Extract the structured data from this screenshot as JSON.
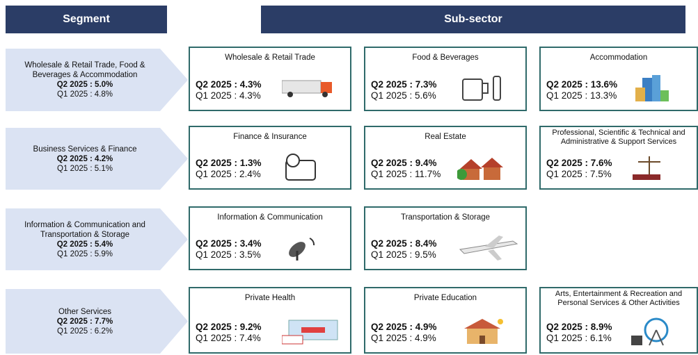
{
  "header": {
    "segment": "Segment",
    "subsector": "Sub-sector"
  },
  "segments": [
    {
      "name": "Wholesale & Retail Trade, Food & Beverages & Accommodation",
      "q2": "Q2 2025 : 5.0%",
      "q1": "Q1 2025 : 4.8%",
      "subsectors": [
        {
          "name": "Wholesale & Retail Trade",
          "q2": "Q2 2025 : 4.3%",
          "q1": "Q1 2025 : 4.3%"
        },
        {
          "name": "Food & Beverages",
          "q2": "Q2 2025 : 7.3%",
          "q1": "Q1 2025 : 5.6%"
        },
        {
          "name": "Accommodation",
          "q2": "Q2 2025 : 13.6%",
          "q1": "Q1 2025 : 13.3%"
        }
      ]
    },
    {
      "name": "Business Services & Finance",
      "q2": "Q2 2025 : 4.2%",
      "q1": "Q1 2025 : 5.1%",
      "subsectors": [
        {
          "name": "Finance & Insurance",
          "q2": "Q2 2025 : 1.3%",
          "q1": "Q1 2025 : 2.4%"
        },
        {
          "name": "Real Estate",
          "q2": "Q2 2025 : 9.4%",
          "q1": "Q1 2025 : 11.7%"
        },
        {
          "name": "Professional, Scientific & Technical and Administrative & Support Services",
          "q2": "Q2 2025 : 7.6%",
          "q1": "Q1 2025 : 7.5%"
        }
      ]
    },
    {
      "name": "Information & Communication and Transportation & Storage",
      "q2": "Q2 2025 : 5.4%",
      "q1": "Q1 2025 : 5.9%",
      "subsectors": [
        {
          "name": "Information & Communication",
          "q2": "Q2 2025 : 3.4%",
          "q1": "Q1 2025 : 3.5%"
        },
        {
          "name": "Transportation & Storage",
          "q2": "Q2 2025 : 8.4%",
          "q1": "Q1 2025 : 9.5%"
        }
      ]
    },
    {
      "name": "Other Services",
      "q2": "Q2 2025 : 7.7%",
      "q1": "Q1 2025 : 6.2%",
      "subsectors": [
        {
          "name": "Private Health",
          "q2": "Q2 2025 : 9.2%",
          "q1": "Q1 2025 : 7.4%"
        },
        {
          "name": "Private Education",
          "q2": "Q2 2025 : 4.9%",
          "q1": "Q1 2025 : 4.9%"
        },
        {
          "name": "Arts, Entertainment & Recreation and Personal Services & Other Activities",
          "q2": "Q2 2025 : 8.9%",
          "q1": "Q1 2025 : 6.1%"
        }
      ]
    }
  ]
}
